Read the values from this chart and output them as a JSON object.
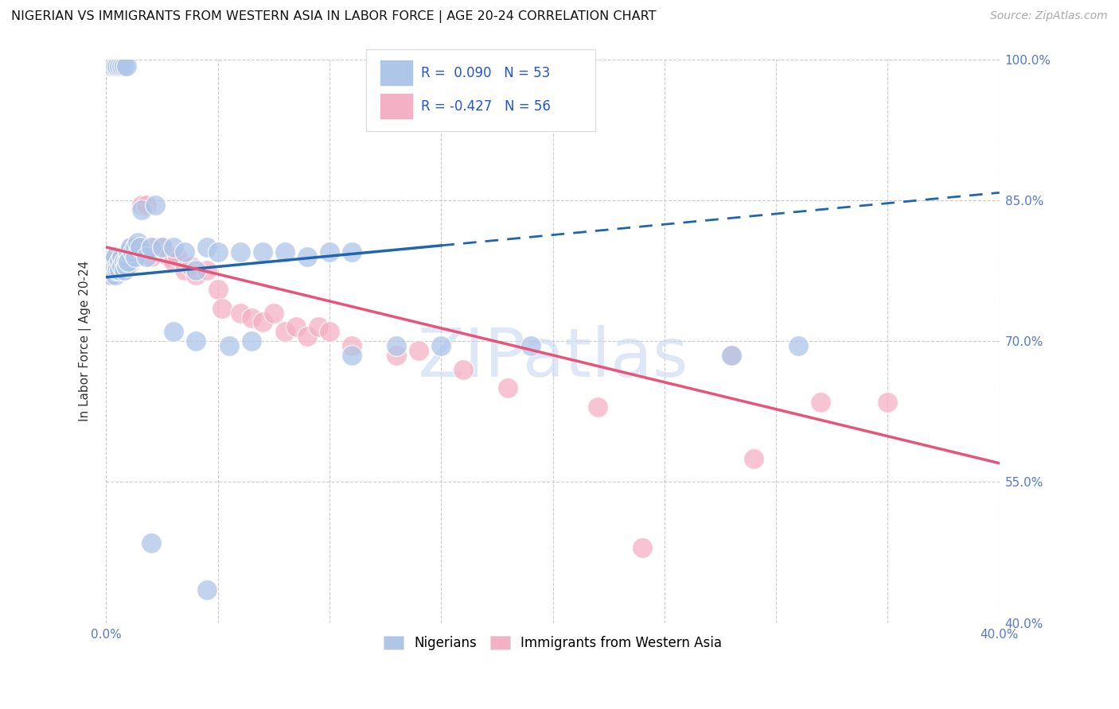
{
  "title": "NIGERIAN VS IMMIGRANTS FROM WESTERN ASIA IN LABOR FORCE | AGE 20-24 CORRELATION CHART",
  "source": "Source: ZipAtlas.com",
  "ylabel": "In Labor Force | Age 20-24",
  "xmin": 0.0,
  "xmax": 0.4,
  "ymin": 0.4,
  "ymax": 1.0,
  "xticks": [
    0.0,
    0.05,
    0.1,
    0.15,
    0.2,
    0.25,
    0.3,
    0.35,
    0.4
  ],
  "xtick_labels": [
    "0.0%",
    "",
    "",
    "",
    "",
    "",
    "",
    "",
    "40.0%"
  ],
  "yticks": [
    0.4,
    0.55,
    0.7,
    0.85,
    1.0
  ],
  "ytick_labels": [
    "40.0%",
    "55.0%",
    "70.0%",
    "85.0%",
    "100.0%"
  ],
  "series1_name": "Nigerians",
  "series1_color": "#aec6e8",
  "series1_line_color": "#2166ac",
  "series2_name": "Immigrants from Western Asia",
  "series2_color": "#f4b0c4",
  "series2_line_color": "#e8537a",
  "blue_scatter": [
    [
      0.001,
      0.775
    ],
    [
      0.002,
      0.78
    ],
    [
      0.002,
      0.77
    ],
    [
      0.003,
      0.785
    ],
    [
      0.003,
      0.775
    ],
    [
      0.004,
      0.79
    ],
    [
      0.004,
      0.77
    ],
    [
      0.005,
      0.78
    ],
    [
      0.005,
      0.775
    ],
    [
      0.006,
      0.785
    ],
    [
      0.006,
      0.775
    ],
    [
      0.007,
      0.79
    ],
    [
      0.007,
      0.78
    ],
    [
      0.008,
      0.785
    ],
    [
      0.008,
      0.775
    ],
    [
      0.009,
      0.785
    ],
    [
      0.009,
      0.78
    ],
    [
      0.01,
      0.795
    ],
    [
      0.01,
      0.785
    ],
    [
      0.011,
      0.8
    ],
    [
      0.012,
      0.795
    ],
    [
      0.013,
      0.8
    ],
    [
      0.013,
      0.79
    ],
    [
      0.014,
      0.805
    ],
    [
      0.015,
      0.8
    ],
    [
      0.016,
      0.84
    ],
    [
      0.018,
      0.79
    ],
    [
      0.02,
      0.8
    ],
    [
      0.022,
      0.845
    ],
    [
      0.025,
      0.8
    ],
    [
      0.03,
      0.8
    ],
    [
      0.035,
      0.795
    ],
    [
      0.04,
      0.775
    ],
    [
      0.045,
      0.8
    ],
    [
      0.05,
      0.795
    ],
    [
      0.06,
      0.795
    ],
    [
      0.07,
      0.795
    ],
    [
      0.08,
      0.795
    ],
    [
      0.09,
      0.79
    ],
    [
      0.1,
      0.795
    ],
    [
      0.11,
      0.795
    ],
    [
      0.03,
      0.71
    ],
    [
      0.04,
      0.7
    ],
    [
      0.055,
      0.695
    ],
    [
      0.065,
      0.7
    ],
    [
      0.11,
      0.685
    ],
    [
      0.13,
      0.695
    ],
    [
      0.15,
      0.695
    ],
    [
      0.19,
      0.695
    ],
    [
      0.28,
      0.685
    ],
    [
      0.31,
      0.695
    ],
    [
      0.02,
      0.485
    ],
    [
      0.045,
      0.435
    ],
    [
      0.002,
      0.993
    ],
    [
      0.003,
      0.993
    ],
    [
      0.004,
      0.993
    ],
    [
      0.005,
      0.993
    ],
    [
      0.006,
      0.993
    ],
    [
      0.007,
      0.993
    ],
    [
      0.008,
      0.993
    ],
    [
      0.009,
      0.993
    ]
  ],
  "pink_scatter": [
    [
      0.001,
      0.775
    ],
    [
      0.002,
      0.78
    ],
    [
      0.002,
      0.77
    ],
    [
      0.003,
      0.785
    ],
    [
      0.003,
      0.775
    ],
    [
      0.004,
      0.79
    ],
    [
      0.004,
      0.78
    ],
    [
      0.005,
      0.785
    ],
    [
      0.005,
      0.775
    ],
    [
      0.006,
      0.785
    ],
    [
      0.006,
      0.775
    ],
    [
      0.007,
      0.79
    ],
    [
      0.007,
      0.78
    ],
    [
      0.008,
      0.785
    ],
    [
      0.008,
      0.775
    ],
    [
      0.009,
      0.785
    ],
    [
      0.01,
      0.795
    ],
    [
      0.01,
      0.78
    ],
    [
      0.011,
      0.8
    ],
    [
      0.012,
      0.795
    ],
    [
      0.013,
      0.8
    ],
    [
      0.014,
      0.795
    ],
    [
      0.015,
      0.8
    ],
    [
      0.016,
      0.845
    ],
    [
      0.018,
      0.845
    ],
    [
      0.02,
      0.79
    ],
    [
      0.022,
      0.8
    ],
    [
      0.025,
      0.8
    ],
    [
      0.028,
      0.79
    ],
    [
      0.03,
      0.785
    ],
    [
      0.032,
      0.79
    ],
    [
      0.035,
      0.775
    ],
    [
      0.038,
      0.78
    ],
    [
      0.04,
      0.77
    ],
    [
      0.045,
      0.775
    ],
    [
      0.05,
      0.755
    ],
    [
      0.052,
      0.735
    ],
    [
      0.06,
      0.73
    ],
    [
      0.065,
      0.725
    ],
    [
      0.07,
      0.72
    ],
    [
      0.075,
      0.73
    ],
    [
      0.08,
      0.71
    ],
    [
      0.085,
      0.715
    ],
    [
      0.09,
      0.705
    ],
    [
      0.095,
      0.715
    ],
    [
      0.1,
      0.71
    ],
    [
      0.11,
      0.695
    ],
    [
      0.13,
      0.685
    ],
    [
      0.14,
      0.69
    ],
    [
      0.16,
      0.67
    ],
    [
      0.18,
      0.65
    ],
    [
      0.22,
      0.63
    ],
    [
      0.28,
      0.685
    ],
    [
      0.32,
      0.635
    ],
    [
      0.35,
      0.635
    ],
    [
      0.002,
      0.993
    ],
    [
      0.003,
      0.993
    ],
    [
      0.24,
      0.48
    ],
    [
      0.29,
      0.575
    ]
  ],
  "blue_line_x0": 0.0,
  "blue_line_y0": 0.768,
  "blue_line_x1": 0.4,
  "blue_line_y1": 0.858,
  "blue_line_solid_end_x": 0.15,
  "pink_line_x0": 0.0,
  "pink_line_y0": 0.8,
  "pink_line_x1": 0.4,
  "pink_line_y1": 0.57,
  "background_color": "#ffffff",
  "grid_color": "#cccccc",
  "title_color": "#111111",
  "axis_tick_color": "#5577cc",
  "watermark_text": "ZIPatlas",
  "watermark_color": "#c8d8f0"
}
